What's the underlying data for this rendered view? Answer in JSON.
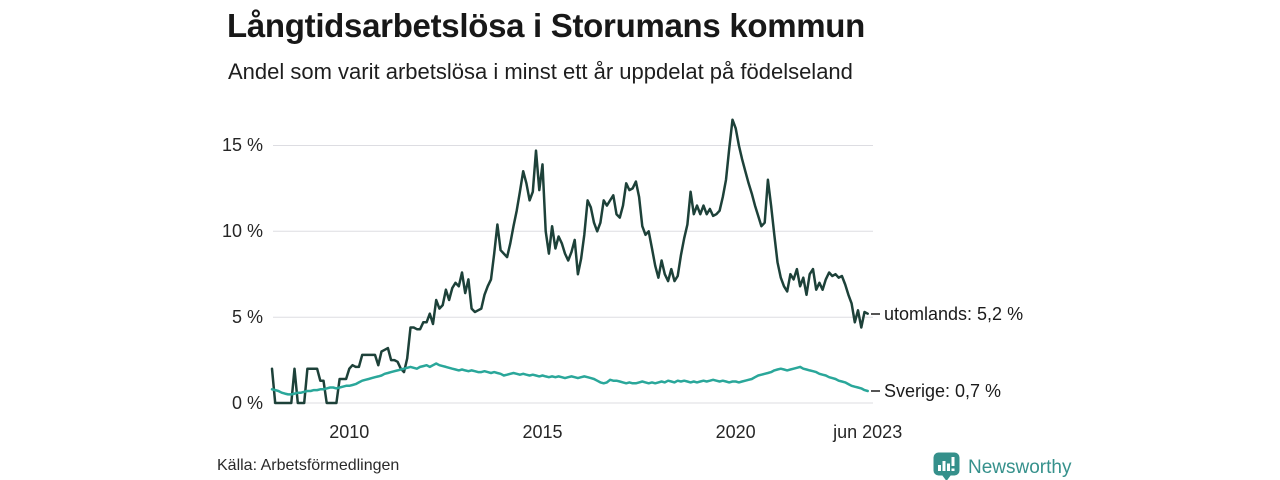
{
  "header": {
    "title": "Långtidsarbetslösa i Storumans kommun",
    "subtitle": "Andel som varit arbetslösa i minst ett år uppdelat på födelseland"
  },
  "chart_data": {
    "type": "line",
    "x_unit": "month",
    "x_range": "2008-01 to 2023-06",
    "grid": "horizontal",
    "gridline_color": "#dddde2",
    "ylim": [
      0,
      17
    ],
    "x_ticks": [
      {
        "label": "2010",
        "month_index": 24
      },
      {
        "label": "2015",
        "month_index": 84
      },
      {
        "label": "2020",
        "month_index": 144
      },
      {
        "label": "jun 2023",
        "month_index": 185
      }
    ],
    "y_ticks": [
      {
        "label": "0 %",
        "value": 0
      },
      {
        "label": "5 %",
        "value": 5
      },
      {
        "label": "10 %",
        "value": 10
      },
      {
        "label": "15 %",
        "value": 15
      }
    ],
    "series": [
      {
        "name": "utomlands",
        "end_label": "utomlands: 5,2 %",
        "color": "#1d4139",
        "values": [
          2.0,
          0,
          0,
          0,
          0,
          0,
          0,
          2.0,
          0,
          0,
          0,
          2.0,
          2.0,
          2.0,
          2.0,
          1.3,
          1.3,
          0,
          0,
          0,
          0,
          1.4,
          1.4,
          1.4,
          2.0,
          2.2,
          2.1,
          2.1,
          2.8,
          2.8,
          2.8,
          2.8,
          2.8,
          2.2,
          3.0,
          3.1,
          3.2,
          2.5,
          2.5,
          2.4,
          2.0,
          1.8,
          2.6,
          4.4,
          4.4,
          4.3,
          4.3,
          4.7,
          4.7,
          5.2,
          4.6,
          6.0,
          5.5,
          5.7,
          6.6,
          6.0,
          6.7,
          7.0,
          6.8,
          7.6,
          6.4,
          7.2,
          5.5,
          5.3,
          5.4,
          5.5,
          6.3,
          6.8,
          7.2,
          8.7,
          10.4,
          8.9,
          8.7,
          8.5,
          9.3,
          10.3,
          11.2,
          12.3,
          13.5,
          12.8,
          11.8,
          12.3,
          14.7,
          12.4,
          13.9,
          10.0,
          8.7,
          10.3,
          9.0,
          9.7,
          9.3,
          8.7,
          8.3,
          8.8,
          9.5,
          7.5,
          8.4,
          9.8,
          11.8,
          11.4,
          10.5,
          10.0,
          10.5,
          11.8,
          11.5,
          11.8,
          12.1,
          11.0,
          10.8,
          11.5,
          12.8,
          12.4,
          12.5,
          12.9,
          12.0,
          10.3,
          9.8,
          10.0,
          9.0,
          8.0,
          7.3,
          8.3,
          7.5,
          7.1,
          7.8,
          7.1,
          7.4,
          8.6,
          9.6,
          10.4,
          12.3,
          11.0,
          11.5,
          11.0,
          11.5,
          11.0,
          11.3,
          10.9,
          11.0,
          11.2,
          12.0,
          13.0,
          14.8,
          16.5,
          16.0,
          15.0,
          14.2,
          13.5,
          12.8,
          12.2,
          11.5,
          10.9,
          10.3,
          10.5,
          13.0,
          11.5,
          9.8,
          8.2,
          7.3,
          6.8,
          6.5,
          7.5,
          7.2,
          7.8,
          6.8,
          7.3,
          6.3,
          7.5,
          7.8,
          6.6,
          7.0,
          6.6,
          7.2,
          7.6,
          7.4,
          7.5,
          7.3,
          7.4,
          6.9,
          6.3,
          5.8,
          4.7,
          5.4,
          4.4,
          5.3,
          5.2
        ]
      },
      {
        "name": "Sverige",
        "end_label": "Sverige: 0,7 %",
        "color": "#2aa79a",
        "values": [
          0.8,
          0.75,
          0.7,
          0.6,
          0.55,
          0.5,
          0.5,
          0.55,
          0.6,
          0.6,
          0.65,
          0.7,
          0.7,
          0.75,
          0.75,
          0.8,
          0.8,
          0.85,
          0.9,
          0.9,
          0.85,
          0.9,
          0.95,
          1.0,
          1.0,
          1.05,
          1.1,
          1.2,
          1.3,
          1.35,
          1.4,
          1.45,
          1.5,
          1.55,
          1.6,
          1.7,
          1.75,
          1.8,
          1.85,
          1.9,
          1.95,
          2.0,
          2.05,
          2.1,
          2.05,
          2.0,
          2.1,
          2.15,
          2.2,
          2.1,
          2.2,
          2.3,
          2.2,
          2.15,
          2.1,
          2.05,
          2.0,
          1.95,
          1.9,
          1.95,
          1.9,
          1.85,
          1.9,
          1.85,
          1.8,
          1.8,
          1.85,
          1.8,
          1.75,
          1.8,
          1.75,
          1.7,
          1.6,
          1.65,
          1.7,
          1.75,
          1.7,
          1.65,
          1.7,
          1.65,
          1.6,
          1.65,
          1.6,
          1.55,
          1.6,
          1.55,
          1.5,
          1.55,
          1.5,
          1.55,
          1.5,
          1.45,
          1.5,
          1.55,
          1.5,
          1.45,
          1.5,
          1.55,
          1.5,
          1.45,
          1.4,
          1.3,
          1.2,
          1.15,
          1.2,
          1.35,
          1.3,
          1.3,
          1.25,
          1.2,
          1.15,
          1.2,
          1.15,
          1.15,
          1.2,
          1.25,
          1.2,
          1.15,
          1.2,
          1.15,
          1.2,
          1.25,
          1.2,
          1.3,
          1.25,
          1.2,
          1.3,
          1.25,
          1.3,
          1.25,
          1.2,
          1.25,
          1.2,
          1.25,
          1.3,
          1.25,
          1.3,
          1.35,
          1.3,
          1.25,
          1.3,
          1.25,
          1.2,
          1.25,
          1.25,
          1.2,
          1.25,
          1.3,
          1.35,
          1.4,
          1.5,
          1.6,
          1.65,
          1.7,
          1.75,
          1.8,
          1.9,
          1.95,
          2.0,
          1.95,
          1.9,
          1.95,
          2.0,
          2.05,
          2.1,
          2.0,
          1.95,
          1.9,
          1.85,
          1.8,
          1.7,
          1.65,
          1.6,
          1.5,
          1.45,
          1.4,
          1.3,
          1.25,
          1.2,
          1.1,
          1.0,
          0.95,
          0.9,
          0.85,
          0.75,
          0.7
        ]
      }
    ]
  },
  "footer": {
    "source": "Källa: Arbetsförmedlingen",
    "brand": "Newsworthy",
    "brand_color": "#36918c",
    "logo_icon": "bar-chart-speech-bubble"
  }
}
